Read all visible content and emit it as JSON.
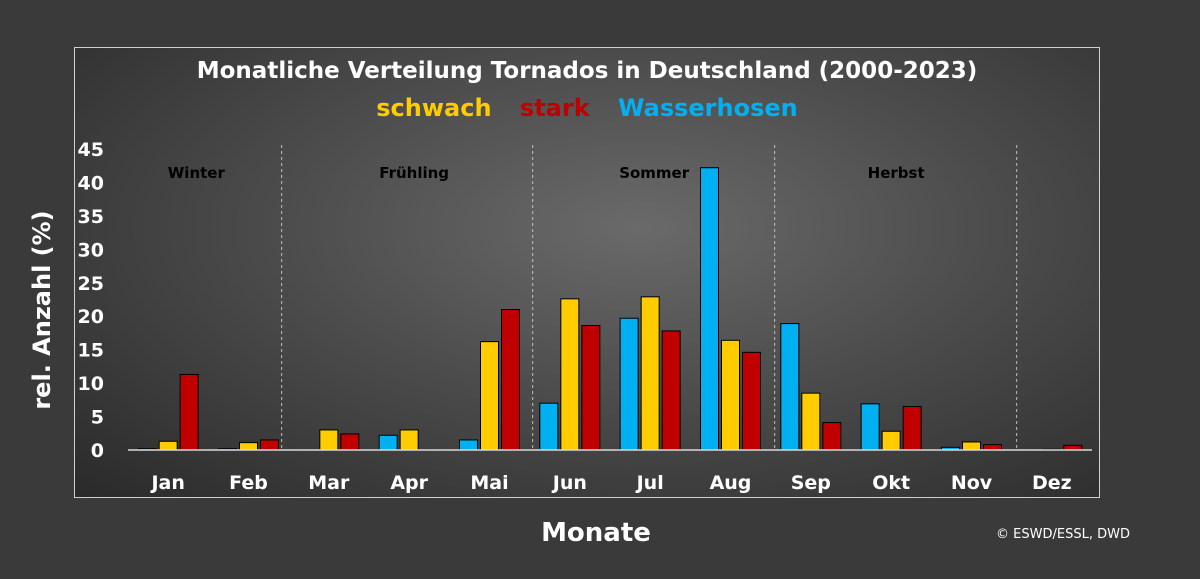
{
  "chart_data": {
    "type": "bar",
    "title": "Monatliche Verteilung Tornados in Deutschland (2000-2023)",
    "xlabel": "Monate",
    "ylabel": "rel. Anzahl (%)",
    "ylim": [
      0,
      45
    ],
    "yticks": [
      0,
      5,
      10,
      15,
      20,
      25,
      30,
      35,
      40,
      45
    ],
    "grid": false,
    "legend_position": "top-center",
    "categories": [
      "Jan",
      "Feb",
      "Mar",
      "Apr",
      "Mai",
      "Jun",
      "Jul",
      "Aug",
      "Sep",
      "Okt",
      "Nov",
      "Dez"
    ],
    "series": [
      {
        "name": "Wasserhosen",
        "color": "#00b0f0",
        "values": [
          0.2,
          0.2,
          0,
          2.2,
          1.5,
          7.0,
          19.7,
          42.2,
          18.9,
          6.9,
          0.4,
          0
        ]
      },
      {
        "name": "schwach",
        "color": "#ffcc00",
        "values": [
          1.3,
          1.1,
          3.0,
          3.0,
          16.2,
          22.6,
          22.9,
          16.4,
          8.5,
          2.8,
          1.2,
          0.1
        ]
      },
      {
        "name": "stark",
        "color": "#c00000",
        "values": [
          11.3,
          1.5,
          2.4,
          0,
          21.0,
          18.6,
          17.8,
          14.6,
          4.1,
          6.5,
          0.8,
          0.7
        ]
      }
    ],
    "seasons": [
      "Winter",
      "Frühling",
      "Sommer",
      "Herbst"
    ]
  },
  "credit": "© ESWD/ESSL, DWD"
}
